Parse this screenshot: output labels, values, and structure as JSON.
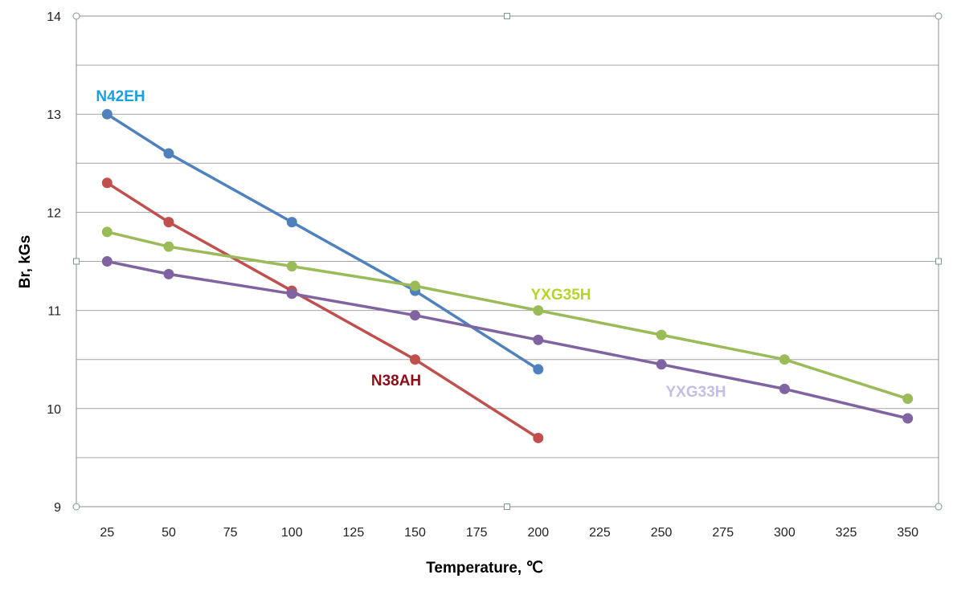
{
  "chart_data": {
    "type": "line",
    "title": "",
    "xlabel": "Temperature, ℃",
    "ylabel": "Br, kGs",
    "x_ticks": [
      "25",
      "50",
      "75",
      "100",
      "125",
      "150",
      "175",
      "200",
      "225",
      "250",
      "275",
      "300",
      "325",
      "350"
    ],
    "y_ticks": [
      "9",
      "10",
      "11",
      "12",
      "13",
      "14"
    ],
    "xlim": [
      12.5,
      362.5
    ],
    "ylim": [
      9,
      14
    ],
    "grid": "horizontal, every 0.5",
    "legend": "none (inline series labels)",
    "series": [
      {
        "name": "N42EH",
        "color": "#4F81BD",
        "label_color": "#1AA0DC",
        "x": [
          25,
          50,
          100,
          150,
          200
        ],
        "y": [
          13.0,
          12.6,
          11.9,
          11.2,
          10.4
        ]
      },
      {
        "name": "N38AH",
        "color": "#C0504D",
        "label_color": "#8B0E1A",
        "x": [
          25,
          50,
          100,
          150,
          200
        ],
        "y": [
          12.3,
          11.9,
          11.2,
          10.5,
          9.7
        ]
      },
      {
        "name": "YXG35H",
        "color": "#9BBB59",
        "label_color": "#B5D42B",
        "x": [
          25,
          50,
          100,
          150,
          200,
          250,
          300,
          350
        ],
        "y": [
          11.8,
          11.65,
          11.45,
          11.25,
          11.0,
          10.75,
          10.5,
          10.1
        ]
      },
      {
        "name": "YXG33H",
        "color": "#8064A2",
        "label_color": "#C6BDE6",
        "x": [
          25,
          50,
          100,
          150,
          200,
          250,
          300,
          350
        ],
        "y": [
          11.5,
          11.37,
          11.17,
          10.95,
          10.7,
          10.45,
          10.2,
          9.9
        ]
      }
    ]
  }
}
